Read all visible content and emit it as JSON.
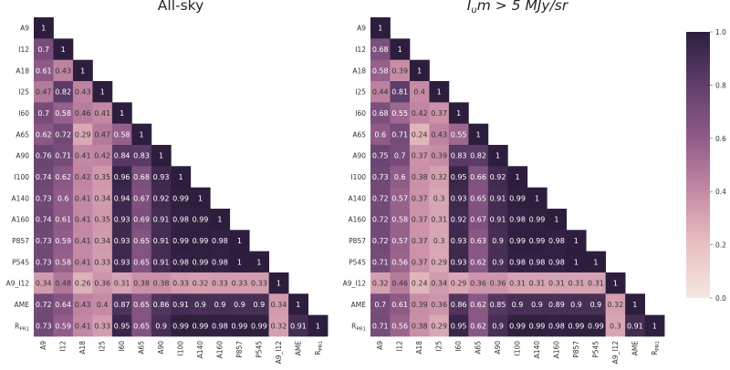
{
  "colormap": {
    "stops": [
      "#f3e7e1",
      "#e8c1c1",
      "#c68aa5",
      "#8f5b87",
      "#603f6c",
      "#2d1e3e"
    ],
    "text_dark": "#333333",
    "text_light": "#ffffff"
  },
  "chart_data": [
    {
      "type": "heatmap",
      "title": "All-sky",
      "labels": [
        "A9",
        "I12",
        "A18",
        "I25",
        "I60",
        "A65",
        "A90",
        "I100",
        "A140",
        "A160",
        "P857",
        "P545",
        "A9_I12",
        "AME",
        "R_PR1"
      ],
      "display_labels": [
        "A9",
        "I12",
        "A18",
        "I25",
        "I60",
        "A65",
        "A90",
        "I100",
        "A140",
        "A160",
        "P857",
        "P545",
        "A9_I12",
        "AME",
        "RPR1"
      ],
      "lower_triangle_values": [
        [
          1
        ],
        [
          0.7,
          1
        ],
        [
          0.61,
          0.43,
          1
        ],
        [
          0.47,
          0.82,
          0.43,
          1
        ],
        [
          0.7,
          0.58,
          0.46,
          0.41,
          1
        ],
        [
          0.62,
          0.72,
          0.29,
          0.47,
          0.58,
          1
        ],
        [
          0.76,
          0.71,
          0.41,
          0.42,
          0.84,
          0.83,
          1
        ],
        [
          0.74,
          0.62,
          0.42,
          0.35,
          0.96,
          0.68,
          0.93,
          1
        ],
        [
          0.73,
          0.6,
          0.41,
          0.34,
          0.94,
          0.67,
          0.92,
          0.99,
          1
        ],
        [
          0.74,
          0.61,
          0.41,
          0.35,
          0.93,
          0.69,
          0.91,
          0.98,
          0.99,
          1
        ],
        [
          0.73,
          0.59,
          0.41,
          0.34,
          0.93,
          0.65,
          0.91,
          0.99,
          0.99,
          0.98,
          1
        ],
        [
          0.73,
          0.58,
          0.41,
          0.33,
          0.93,
          0.65,
          0.91,
          0.98,
          0.99,
          0.98,
          1,
          1
        ],
        [
          0.34,
          0.48,
          0.26,
          0.36,
          0.31,
          0.38,
          0.38,
          0.33,
          0.32,
          0.33,
          0.33,
          0.33,
          1
        ],
        [
          0.72,
          0.64,
          0.43,
          0.4,
          0.87,
          0.65,
          0.86,
          0.91,
          0.9,
          0.9,
          0.9,
          0.9,
          0.34,
          1
        ],
        [
          0.73,
          0.59,
          0.41,
          0.33,
          0.95,
          0.65,
          0.9,
          0.99,
          0.99,
          0.98,
          0.99,
          0.99,
          0.32,
          0.91,
          1
        ]
      ],
      "vmin": 0,
      "vmax": 1
    },
    {
      "type": "heatmap",
      "title_parts": {
        "i": "I",
        "sub": "u",
        "rest": "m > 5 MJy/sr"
      },
      "labels": [
        "A9",
        "I12",
        "A18",
        "I25",
        "I60",
        "A65",
        "A90",
        "I100",
        "A140",
        "A160",
        "P857",
        "P545",
        "A9_I12",
        "AME",
        "R_PR1"
      ],
      "display_labels": [
        "A9",
        "I12",
        "A18",
        "I25",
        "I60",
        "A65",
        "A90",
        "I100",
        "A140",
        "A160",
        "P857",
        "P545",
        "A9_I12",
        "AME",
        "RPR1"
      ],
      "lower_triangle_values": [
        [
          1
        ],
        [
          0.68,
          1
        ],
        [
          0.58,
          0.39,
          1
        ],
        [
          0.44,
          0.81,
          0.4,
          1
        ],
        [
          0.68,
          0.55,
          0.42,
          0.37,
          1
        ],
        [
          0.6,
          0.71,
          0.24,
          0.43,
          0.55,
          1
        ],
        [
          0.75,
          0.7,
          0.37,
          0.39,
          0.83,
          0.82,
          1
        ],
        [
          0.73,
          0.6,
          0.38,
          0.32,
          0.95,
          0.66,
          0.92,
          1
        ],
        [
          0.72,
          0.57,
          0.37,
          0.3,
          0.93,
          0.65,
          0.91,
          0.99,
          1
        ],
        [
          0.72,
          0.58,
          0.37,
          0.31,
          0.92,
          0.67,
          0.91,
          0.98,
          0.99,
          1
        ],
        [
          0.72,
          0.57,
          0.37,
          0.3,
          0.93,
          0.63,
          0.9,
          0.99,
          0.99,
          0.98,
          1
        ],
        [
          0.71,
          0.56,
          0.37,
          0.29,
          0.93,
          0.62,
          0.9,
          0.98,
          0.98,
          0.98,
          1,
          1
        ],
        [
          0.32,
          0.46,
          0.24,
          0.34,
          0.29,
          0.36,
          0.36,
          0.31,
          0.31,
          0.31,
          0.31,
          0.31,
          1
        ],
        [
          0.7,
          0.61,
          0.39,
          0.36,
          0.86,
          0.62,
          0.85,
          0.9,
          0.9,
          0.89,
          0.9,
          0.9,
          0.32,
          1
        ],
        [
          0.71,
          0.56,
          0.38,
          0.29,
          0.95,
          0.62,
          0.9,
          0.99,
          0.99,
          0.98,
          0.99,
          0.99,
          0.3,
          0.91,
          1
        ]
      ],
      "vmin": 0,
      "vmax": 1
    }
  ],
  "colorbar": {
    "ticks": [
      0.0,
      0.2,
      0.4,
      0.6,
      0.8,
      1.0
    ],
    "tick_labels": [
      "0.0",
      "0.2",
      "0.4",
      "0.6",
      "0.8",
      "1.0"
    ]
  }
}
